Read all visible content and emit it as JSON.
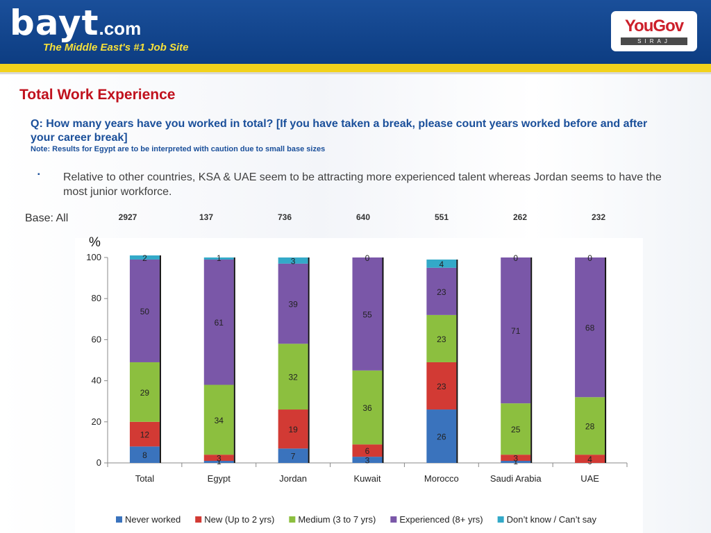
{
  "header": {
    "logo_main": "bayt",
    "logo_dotcom": ".com",
    "tagline": "The Middle East's #1 Job Site",
    "partner_name": "YouGov",
    "partner_sub": "SIRAJ"
  },
  "slide": {
    "title": "Total Work Experience",
    "question": "Q: How many years have you worked in total? [If you have taken a break, please count years worked before and after your career break]",
    "note": "Note: Results for Egypt are to be interpreted with caution due to small base sizes",
    "bullet_symbol": "▪",
    "insight": "Relative to other countries, KSA & UAE seem to be attracting more experienced talent whereas Jordan seems to have the most junior workforce.",
    "base_label": "Base: All",
    "base_counts": [
      "2927",
      "137",
      "736",
      "640",
      "551",
      "262",
      "232"
    ]
  },
  "colors": {
    "header_blue": "#1a4f9a",
    "stripe_yellow": "#f2d21b",
    "title_red": "#c0111d",
    "question_blue": "#1a4f9a"
  },
  "chart_data": {
    "type": "bar",
    "stacked": true,
    "unit_label": "%",
    "categories": [
      "Total",
      "Egypt",
      "Jordan",
      "Kuwait",
      "Morocco",
      "Saudi Arabia",
      "UAE"
    ],
    "ylim": [
      0,
      100
    ],
    "yticks": [
      0,
      20,
      40,
      60,
      80,
      100
    ],
    "legend_position": "bottom",
    "series": [
      {
        "name": "Never worked",
        "color": "#3a73bd",
        "values": [
          8,
          1,
          7,
          3,
          26,
          1,
          0
        ]
      },
      {
        "name": "New (Up to 2 yrs)",
        "color": "#d23a34",
        "values": [
          12,
          3,
          19,
          6,
          23,
          3,
          4
        ]
      },
      {
        "name": "Medium (3 to 7 yrs)",
        "color": "#8cbf3f",
        "values": [
          29,
          34,
          32,
          36,
          23,
          25,
          28
        ]
      },
      {
        "name": "Experienced (8+ yrs)",
        "color": "#7a57a8",
        "values": [
          50,
          61,
          39,
          55,
          23,
          71,
          68
        ]
      },
      {
        "name": "Don’t know / Can’t say",
        "color": "#33a9c8",
        "values": [
          2,
          1,
          3,
          0,
          4,
          0,
          0
        ]
      }
    ]
  }
}
